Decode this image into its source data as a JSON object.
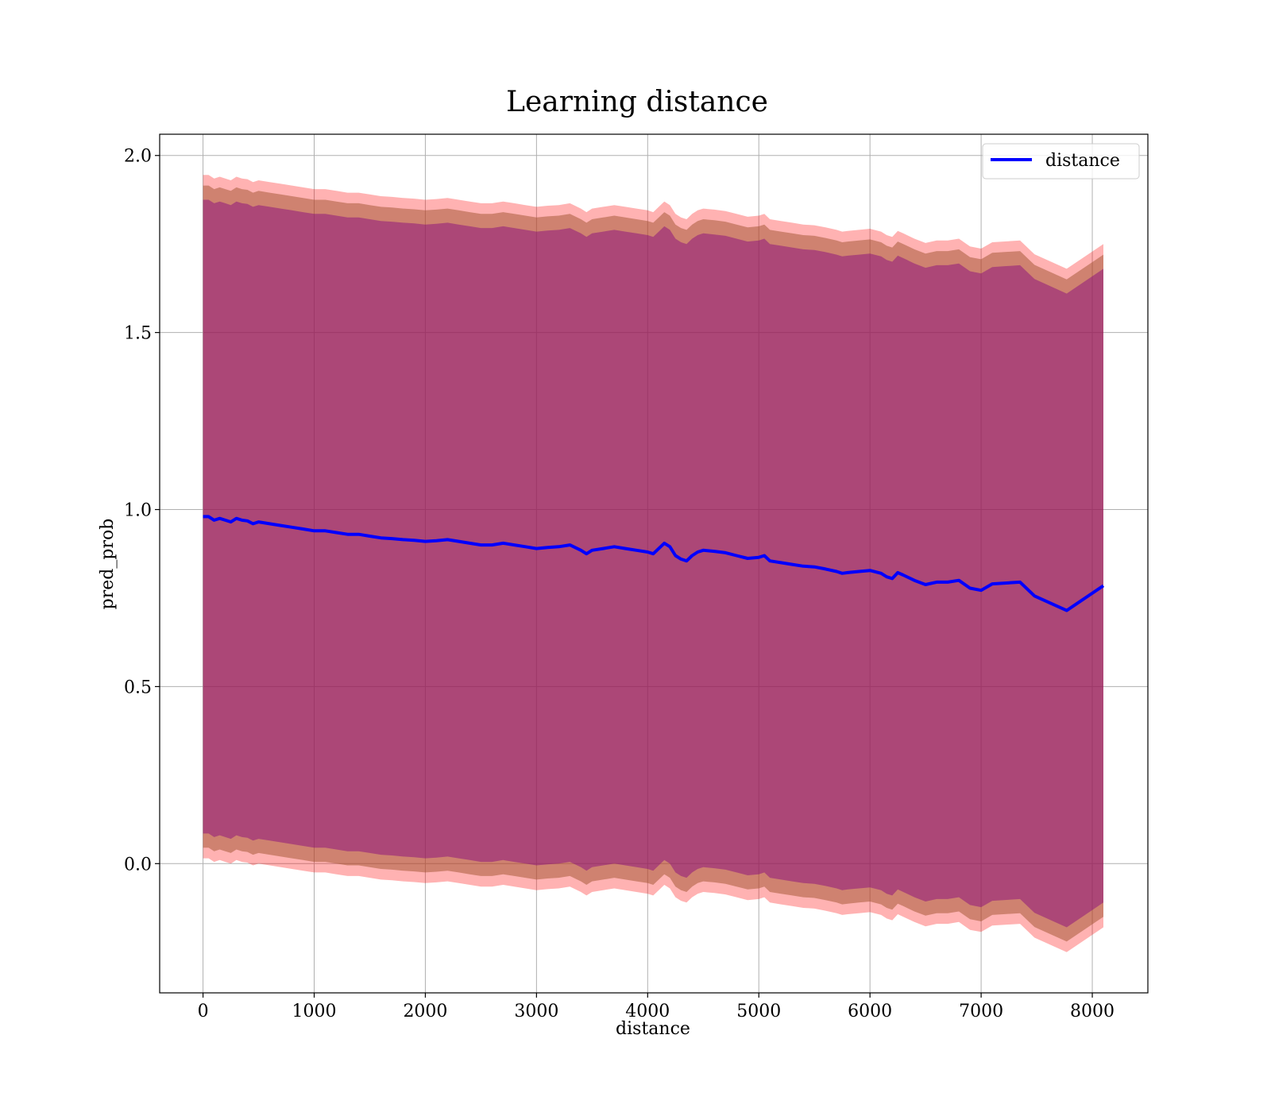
{
  "chart_data": {
    "type": "line",
    "title": "Learning distance",
    "xlabel": "distance",
    "ylabel": "pred_prob",
    "xlim": [
      -390,
      8500
    ],
    "ylim": [
      -0.365,
      2.06
    ],
    "xticks": [
      0,
      1000,
      2000,
      3000,
      4000,
      5000,
      6000,
      7000,
      8000
    ],
    "xtick_labels": [
      "0",
      "1000",
      "2000",
      "3000",
      "4000",
      "5000",
      "6000",
      "7000",
      "8000"
    ],
    "yticks": [
      0.0,
      0.5,
      1.0,
      1.5,
      2.0
    ],
    "ytick_labels": [
      "0.0",
      "0.5",
      "1.0",
      "1.5",
      "2.0"
    ],
    "grid": true,
    "legend": {
      "position": "top-right",
      "entries": [
        "distance"
      ]
    },
    "colors": {
      "line": "#0000ff",
      "outer_band": "#ff0000",
      "middle_band": "#a0522d",
      "inner_band": "#800080",
      "grid": "#b0b0b0"
    },
    "series": [
      {
        "name": "distance",
        "x": [
          0,
          50,
          100,
          150,
          200,
          250,
          300,
          350,
          400,
          450,
          500,
          600,
          700,
          800,
          900,
          1000,
          1100,
          1200,
          1300,
          1400,
          1500,
          1600,
          1700,
          1800,
          1900,
          2000,
          2100,
          2200,
          2300,
          2400,
          2500,
          2600,
          2700,
          2800,
          2900,
          3000,
          3100,
          3200,
          3300,
          3400,
          3450,
          3500,
          3600,
          3700,
          3800,
          3900,
          4000,
          4050,
          4100,
          4150,
          4200,
          4250,
          4300,
          4350,
          4400,
          4450,
          4500,
          4600,
          4700,
          4800,
          4900,
          5000,
          5050,
          5100,
          5200,
          5300,
          5400,
          5500,
          5600,
          5700,
          5750,
          5800,
          5900,
          6000,
          6100,
          6150,
          6200,
          6250,
          6300,
          6400,
          6500,
          6600,
          6700,
          6800,
          6900,
          7000,
          7100,
          7200,
          7350,
          7480,
          7770,
          8100
        ],
        "y": [
          0.98,
          0.98,
          0.97,
          0.975,
          0.97,
          0.965,
          0.975,
          0.97,
          0.968,
          0.96,
          0.965,
          0.96,
          0.955,
          0.95,
          0.945,
          0.94,
          0.94,
          0.935,
          0.93,
          0.93,
          0.925,
          0.92,
          0.918,
          0.915,
          0.913,
          0.91,
          0.912,
          0.915,
          0.91,
          0.905,
          0.9,
          0.9,
          0.905,
          0.9,
          0.895,
          0.89,
          0.893,
          0.895,
          0.9,
          0.885,
          0.875,
          0.885,
          0.89,
          0.895,
          0.89,
          0.885,
          0.88,
          0.875,
          0.89,
          0.905,
          0.895,
          0.87,
          0.86,
          0.855,
          0.87,
          0.88,
          0.885,
          0.882,
          0.878,
          0.87,
          0.862,
          0.865,
          0.87,
          0.855,
          0.85,
          0.845,
          0.84,
          0.838,
          0.832,
          0.825,
          0.82,
          0.822,
          0.825,
          0.828,
          0.82,
          0.81,
          0.805,
          0.822,
          0.815,
          0.8,
          0.788,
          0.795,
          0.795,
          0.8,
          0.778,
          0.772,
          0.79,
          0.792,
          0.795,
          0.756,
          0.715,
          0.785
        ]
      }
    ],
    "bands": [
      {
        "color": "#ff0000",
        "opacity": 0.3,
        "halfwidth_start": 0.965,
        "halfwidth_end": 0.965
      },
      {
        "color": "#a0522d",
        "opacity": 0.5,
        "halfwidth_start": 0.935,
        "halfwidth_end": 0.935
      },
      {
        "color": "#800080",
        "opacity": 0.45,
        "halfwidth_start": 0.895,
        "halfwidth_end": 0.895
      }
    ]
  }
}
